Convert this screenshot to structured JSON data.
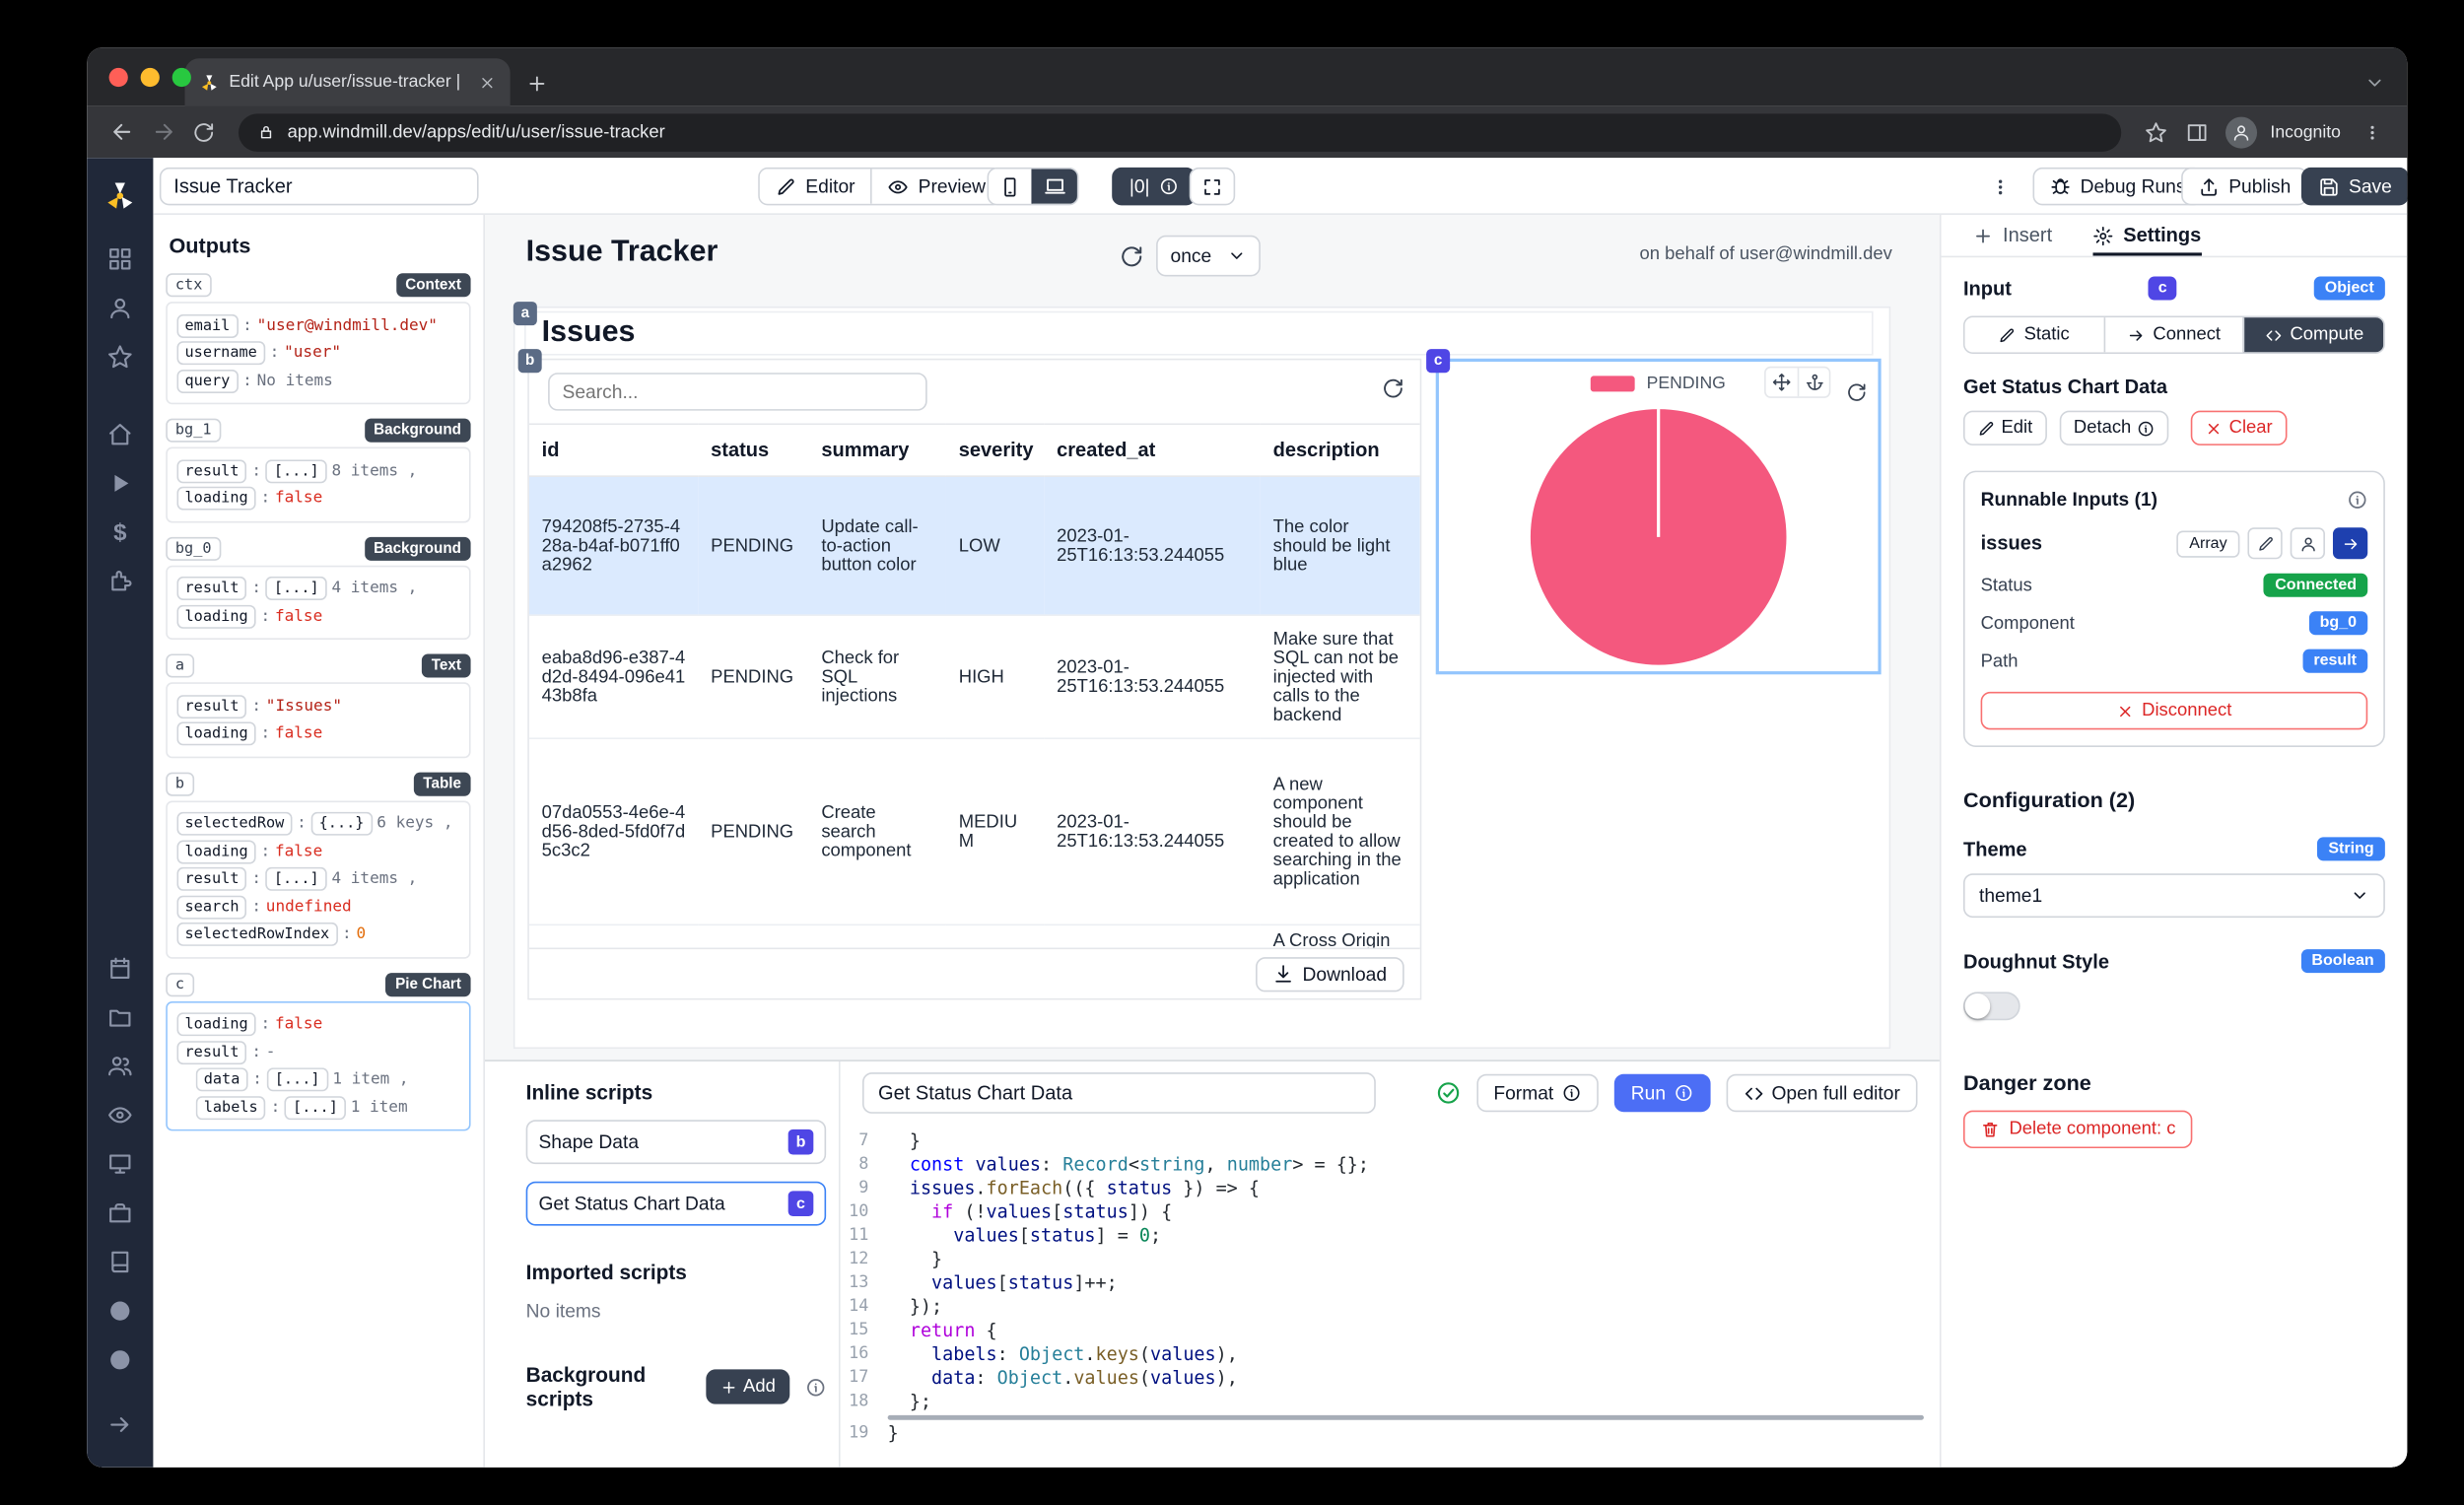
{
  "colors": {
    "accent": "#4f46e5",
    "blue": "#3b82f6",
    "green": "#16a34a",
    "red": "#dc2626",
    "dark": "#374151",
    "pie": "#f4587e",
    "selected_row": "#dbeafe"
  },
  "browser": {
    "tab_title": "Edit App u/user/issue-tracker |",
    "url": "app.windmill.dev/apps/edit/u/user/issue-tracker",
    "incognito_label": "Incognito"
  },
  "rail": {
    "logo_icon": "windmill-logo",
    "top_icons": [
      "apps-grid",
      "user",
      "star"
    ],
    "mid_icons": [
      "home",
      "play",
      "dollar",
      "puzzle"
    ],
    "lower_icons": [
      "calendar",
      "folder",
      "users",
      "eye",
      "monitor",
      "briefcase",
      "book",
      "discord",
      "github"
    ],
    "bottom_icon": "arrow-right"
  },
  "toolbar": {
    "app_name": "Issue Tracker",
    "editor_label": "Editor",
    "preview_label": "Preview",
    "runs_label": "|0|",
    "debug_label": "Debug Runs",
    "publish_label": "Publish",
    "save_label": "Save"
  },
  "outputs": {
    "title": "Outputs",
    "sections": [
      {
        "id": "ctx",
        "type": "Context",
        "selected": false,
        "rows": [
          {
            "key": "email",
            "val": "\"user@windmill.dev\"",
            "cls": "str"
          },
          {
            "key": "username",
            "val": "\"user\"",
            "cls": "str"
          },
          {
            "key": "query",
            "val": "No items",
            "cls": "mut"
          }
        ]
      },
      {
        "id": "bg_1",
        "type": "Background",
        "selected": false,
        "rows": [
          {
            "key": "result",
            "chip": "[...]",
            "sfx": "8 items ,"
          },
          {
            "key": "loading",
            "val": "false",
            "cls": "bool"
          }
        ]
      },
      {
        "id": "bg_0",
        "type": "Background",
        "selected": false,
        "rows": [
          {
            "key": "result",
            "chip": "[...]",
            "sfx": "4 items ,"
          },
          {
            "key": "loading",
            "val": "false",
            "cls": "bool"
          }
        ]
      },
      {
        "id": "a",
        "type": "Text",
        "selected": false,
        "rows": [
          {
            "key": "result",
            "val": "\"Issues\"",
            "cls": "str"
          },
          {
            "key": "loading",
            "val": "false",
            "cls": "bool"
          }
        ]
      },
      {
        "id": "b",
        "type": "Table",
        "selected": false,
        "rows": [
          {
            "key": "selectedRow",
            "chip": "{...}",
            "sfx": "6 keys ,"
          },
          {
            "key": "loading",
            "val": "false",
            "cls": "bool"
          },
          {
            "key": "result",
            "chip": "[...]",
            "sfx": "4 items ,"
          },
          {
            "key": "search",
            "val": "undefined",
            "cls": "undef"
          },
          {
            "key": "selectedRowIndex",
            "val": "0",
            "cls": "num"
          }
        ]
      },
      {
        "id": "c",
        "type": "Pie Chart",
        "selected": true,
        "rows": [
          {
            "key": "loading",
            "val": "false",
            "cls": "bool"
          },
          {
            "key": "result",
            "val": "-",
            "cls": "mut"
          },
          {
            "key": "data",
            "chip": "[...]",
            "sfx": "1 item ,",
            "ind": true
          },
          {
            "key": "labels",
            "chip": "[...]",
            "sfx": "1 item",
            "ind": true
          }
        ]
      }
    ]
  },
  "canvas": {
    "app_title": "Issue Tracker",
    "refresh_mode": "once",
    "behalf": "on behalf of user@windmill.dev",
    "heading": {
      "badge": "a",
      "text": "Issues"
    },
    "table": {
      "badge": "b",
      "search_placeholder": "Search...",
      "columns": [
        "id",
        "status",
        "summary",
        "severity",
        "created_at",
        "description"
      ],
      "rows": [
        {
          "id": "794208f5-2735-428a-b4af-b071ff0a2962",
          "status": "PENDING",
          "summary": "Update call-to-action button color",
          "severity": "LOW",
          "created_at": "2023-01-25T16:13:53.244055",
          "description": "The color should be light blue",
          "selected": true,
          "partial": false
        },
        {
          "id": "eaba8d96-e387-4d2d-8494-096e4143b8fa",
          "status": "PENDING",
          "summary": "Check for SQL injections",
          "severity": "HIGH",
          "created_at": "2023-01-25T16:13:53.244055",
          "description": "Make sure that SQL can not be injected with calls to the backend",
          "selected": false,
          "partial": false
        },
        {
          "id": "07da0553-4e6e-4d56-8ded-5fd0f7d5c3c2",
          "status": "PENDING",
          "summary": "Create search component",
          "severity": "MEDIUM",
          "created_at": "2023-01-25T16:13:53.244055",
          "description": "A new component should be created to allow searching in the application",
          "selected": false,
          "partial": false
        },
        {
          "id": "",
          "status": "",
          "summary": "",
          "severity": "",
          "created_at": "",
          "description": "A Cross Origin",
          "selected": false,
          "partial": true
        }
      ],
      "download_label": "Download"
    },
    "pie": {
      "badge": "c",
      "legend": "PENDING",
      "color": "#f4587e"
    }
  },
  "chart_data": {
    "type": "pie",
    "title": "",
    "labels": [
      "PENDING"
    ],
    "values": [
      4
    ],
    "colors": [
      "#f4587e"
    ],
    "legend_position": "top"
  },
  "bottom": {
    "inline_title": "Inline scripts",
    "scripts": [
      {
        "label": "Shape Data",
        "badge": "b",
        "selected": false
      },
      {
        "label": "Get Status Chart Data",
        "badge": "c",
        "selected": true
      }
    ],
    "imported_title": "Imported scripts",
    "imported_empty": "No items",
    "background_title": "Background scripts",
    "add_label": "Add",
    "editor": {
      "name": "Get Status Chart Data",
      "format_label": "Format",
      "run_label": "Run",
      "open_label": "Open full editor",
      "lines": [
        {
          "n": 7,
          "t": [
            [
              "p",
              "  }"
            ]
          ]
        },
        {
          "n": 8,
          "t": [
            [
              "p",
              "  "
            ],
            [
              "k",
              "const"
            ],
            [
              "p",
              " "
            ],
            [
              "v",
              "values"
            ],
            [
              "p",
              ": "
            ],
            [
              "t",
              "Record"
            ],
            [
              "p",
              "<"
            ],
            [
              "t",
              "string"
            ],
            [
              "p",
              ", "
            ],
            [
              "t",
              "number"
            ],
            [
              "p",
              "> = {};"
            ]
          ]
        },
        {
          "n": 9,
          "t": [
            [
              "p",
              "  "
            ],
            [
              "v",
              "issues"
            ],
            [
              "p",
              "."
            ],
            [
              "f",
              "forEach"
            ],
            [
              "p",
              "(({ "
            ],
            [
              "v",
              "status"
            ],
            [
              "p",
              " }) => {"
            ]
          ]
        },
        {
          "n": 10,
          "t": [
            [
              "p",
              "    "
            ],
            [
              "c",
              "if"
            ],
            [
              "p",
              " (!"
            ],
            [
              "v",
              "values"
            ],
            [
              "p",
              "["
            ],
            [
              "v",
              "status"
            ],
            [
              "p",
              "]) {"
            ]
          ]
        },
        {
          "n": 11,
          "t": [
            [
              "p",
              "      "
            ],
            [
              "v",
              "values"
            ],
            [
              "p",
              "["
            ],
            [
              "v",
              "status"
            ],
            [
              "p",
              "] = "
            ],
            [
              "n",
              "0"
            ],
            [
              "p",
              ";"
            ]
          ]
        },
        {
          "n": 12,
          "t": [
            [
              "p",
              "    }"
            ]
          ]
        },
        {
          "n": 13,
          "t": [
            [
              "p",
              "    "
            ],
            [
              "v",
              "values"
            ],
            [
              "p",
              "["
            ],
            [
              "v",
              "status"
            ],
            [
              "p",
              "]++;"
            ]
          ]
        },
        {
          "n": 14,
          "t": [
            [
              "p",
              "  });"
            ]
          ]
        },
        {
          "n": 15,
          "t": [
            [
              "p",
              "  "
            ],
            [
              "c",
              "return"
            ],
            [
              "p",
              " {"
            ]
          ]
        },
        {
          "n": 16,
          "t": [
            [
              "p",
              "    "
            ],
            [
              "v",
              "labels"
            ],
            [
              "p",
              ": "
            ],
            [
              "t",
              "Object"
            ],
            [
              "p",
              "."
            ],
            [
              "f",
              "keys"
            ],
            [
              "p",
              "("
            ],
            [
              "v",
              "values"
            ],
            [
              "p",
              "),"
            ]
          ]
        },
        {
          "n": 17,
          "t": [
            [
              "p",
              "    "
            ],
            [
              "v",
              "data"
            ],
            [
              "p",
              ": "
            ],
            [
              "t",
              "Object"
            ],
            [
              "p",
              "."
            ],
            [
              "f",
              "values"
            ],
            [
              "p",
              "("
            ],
            [
              "v",
              "values"
            ],
            [
              "p",
              "),"
            ]
          ]
        },
        {
          "n": 18,
          "t": [
            [
              "p",
              "  };"
            ]
          ]
        },
        {
          "n": 19,
          "t": [
            [
              "p",
              "}"
            ]
          ]
        }
      ]
    }
  },
  "settings": {
    "insert_tab": "Insert",
    "settings_tab": "Settings",
    "input_label": "Input",
    "component_id": "c",
    "type_badge": "Object",
    "modes": [
      "Static",
      "Connect",
      "Compute"
    ],
    "active_mode": "Compute",
    "script_name": "Get Status Chart Data",
    "edit_label": "Edit",
    "detach_label": "Detach",
    "clear_label": "Clear",
    "runnable": {
      "title": "Runnable Inputs (1)",
      "input_name": "issues",
      "input_type": "Array",
      "rows": [
        {
          "label": "Status",
          "value": "Connected",
          "badge": "green"
        },
        {
          "label": "Component",
          "value": "bg_0",
          "badge": "blue"
        },
        {
          "label": "Path",
          "value": "result",
          "badge": "blue"
        }
      ],
      "disconnect_label": "Disconnect"
    },
    "config_title": "Configuration (2)",
    "theme_label": "Theme",
    "theme_type": "String",
    "theme_value": "theme1",
    "doughnut_label": "Doughnut Style",
    "doughnut_type": "Boolean",
    "doughnut_value": false,
    "danger_title": "Danger zone",
    "delete_label": "Delete component: c"
  }
}
